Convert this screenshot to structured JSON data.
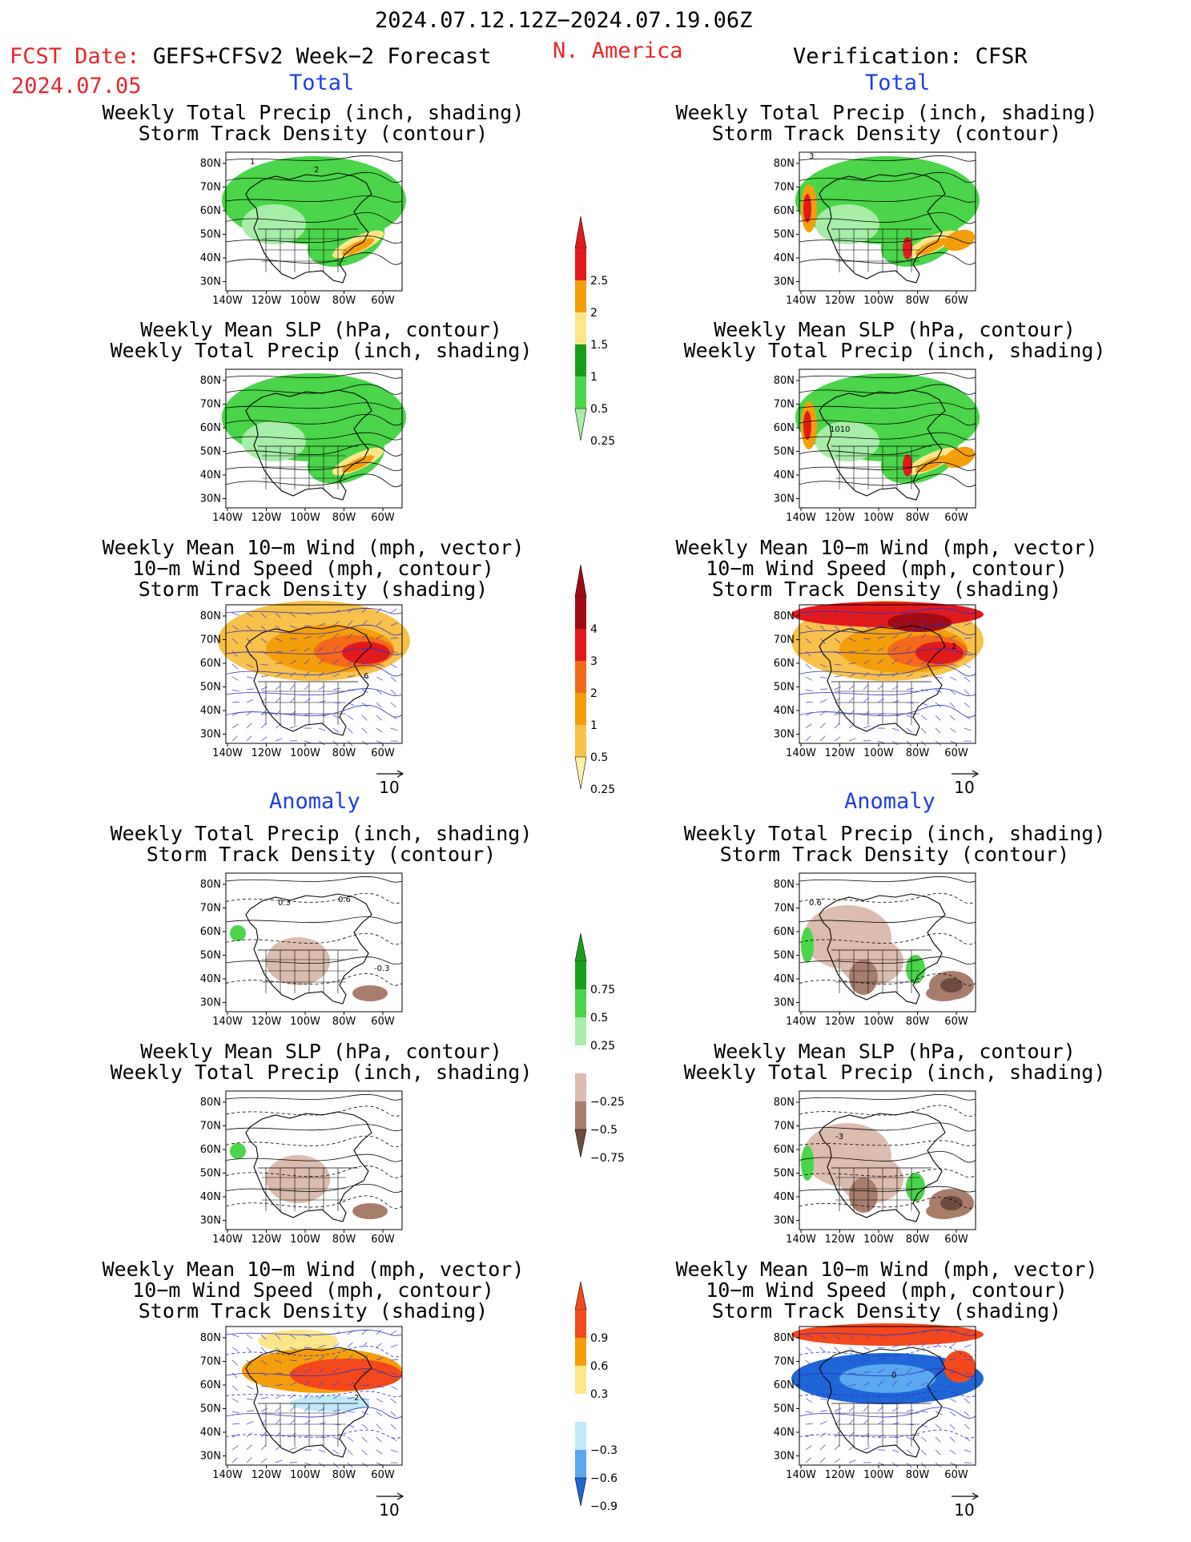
{
  "header": {
    "date_range": "2024.07.12.12Z−2024.07.19.06Z",
    "fcst_label": "FCST Date:",
    "fcst_model": "GEFS+CFSv2 Week−2 Forecast",
    "fcst_date": "2024.07.05",
    "region": "N. America",
    "verification": "Verification: CFSR"
  },
  "sections": {
    "total_left": "Total",
    "total_right": "Total",
    "anomaly_left": "Anomaly",
    "anomaly_right": "Anomaly"
  },
  "panel_titles": {
    "precip_storm": [
      "Weekly Total Precip (inch, shading)",
      "Storm Track Density (contour)"
    ],
    "slp_precip": [
      "Weekly Mean SLP (hPa, contour)",
      "Weekly Total Precip (inch, shading)"
    ],
    "wind_storm": [
      "Weekly Mean 10−m Wind (mph, vector)",
      "10−m Wind Speed (mph, contour)",
      "Storm Track Density (shading)"
    ]
  },
  "axes": {
    "lat_labels": [
      "80N",
      "70N",
      "60N",
      "50N",
      "40N",
      "30N"
    ],
    "lon_labels": [
      "140W",
      "120W",
      "100W",
      "80W",
      "60W"
    ]
  },
  "vector_ref": "10",
  "contour_labels": {
    "p1": [
      "1",
      "2"
    ],
    "p2": [
      "3"
    ],
    "p4": [
      "1010"
    ],
    "p5": [
      "6"
    ],
    "p6": [
      "2"
    ],
    "p7": [
      "0.3",
      "0.6",
      "-0.3"
    ],
    "p8": [
      "0.6"
    ],
    "p10": [
      "-3"
    ],
    "p11": [
      "2"
    ],
    "p12": [
      "0"
    ]
  },
  "colorbars": {
    "precip_total": {
      "labels": [
        "2.5",
        "2",
        "1.5",
        "1",
        "0.5",
        "0.25"
      ],
      "colors": [
        "#e31a1c",
        "#f59e0b",
        "#fde68a",
        "#1a9e1a",
        "#4ad54a",
        "#a7eca7"
      ]
    },
    "storm_total": {
      "labels": [
        "4",
        "3",
        "2",
        "1",
        "0.5",
        "0.25"
      ],
      "colors": [
        "#a10c14",
        "#e31a1c",
        "#f46a1a",
        "#f59e0b",
        "#f7c14a",
        "#fdf2a8"
      ]
    },
    "precip_anom": {
      "labels": [
        "0.75",
        "0.5",
        "0.25",
        "−0.25",
        "−0.5",
        "−0.75"
      ],
      "colors": [
        "#1a9e1a",
        "#4ad54a",
        "#a7eca7",
        "#ffffff",
        "#dcbcae",
        "#a87d6c",
        "#6e4b3e"
      ]
    },
    "storm_anom": {
      "labels": [
        "0.9",
        "0.6",
        "0.3",
        "−0.3",
        "−0.6",
        "−0.9"
      ],
      "colors": [
        "#f2481c",
        "#f59e0b",
        "#fde68a",
        "#ffffff",
        "#bfe9f7",
        "#5aa8f0",
        "#1f66d6"
      ]
    }
  }
}
